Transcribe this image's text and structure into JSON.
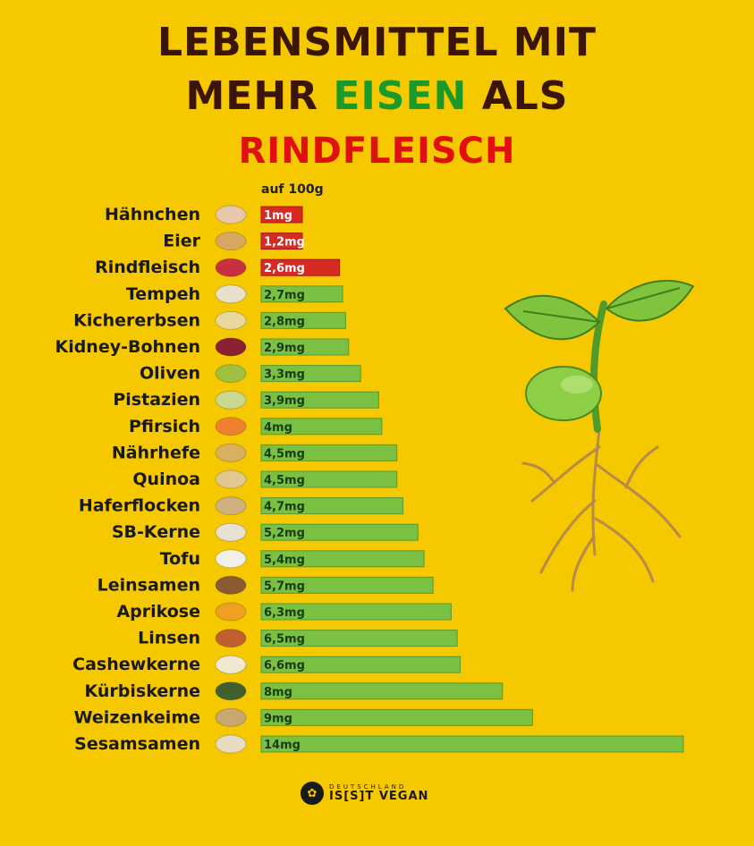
{
  "header": {
    "line1": "LEBENSMITTEL MIT",
    "line2_prefix": "MEHR ",
    "line2_highlight": "EISEN",
    "line2_suffix": " ALS",
    "line3": "RINDFLEISCH"
  },
  "unit_note": "auf 100g",
  "logo": {
    "small": "DEUTSCHLAND",
    "big": "IS[S]T VEGAN"
  },
  "colors": {
    "background": "#f5c800",
    "bar_green": "#7ac043",
    "bar_red": "#d62a22",
    "title_dark": "#3a1508",
    "title_green": "#1b9a2a",
    "title_red": "#e01010"
  },
  "chart_data": {
    "type": "bar",
    "orientation": "horizontal",
    "categories": [
      "Hähnchen",
      "Eier",
      "Rindfleisch",
      "Tempeh",
      "Kichererbsen",
      "Kidney-Bohnen",
      "Oliven",
      "Pistazien",
      "Pfirsich",
      "Nährhefe",
      "Quinoa",
      "Haferflocken",
      "SB-Kerne",
      "Tofu",
      "Leinsamen",
      "Aprikose",
      "Linsen",
      "Cashewkerne",
      "Kürbiskerne",
      "Weizenkeime",
      "Sesamsamen"
    ],
    "values": [
      1,
      1.2,
      2.6,
      2.7,
      2.8,
      2.9,
      3.3,
      3.9,
      4,
      4.5,
      4.5,
      4.7,
      5.2,
      5.4,
      5.7,
      6.3,
      6.5,
      6.6,
      8,
      9,
      14
    ],
    "value_labels": [
      "1mg",
      "1,2mg",
      "2,6mg",
      "2,7mg",
      "2,8mg",
      "2,9mg",
      "3,3mg",
      "3,9mg",
      "4mg",
      "4,5mg",
      "4,5mg",
      "4,7mg",
      "5,2mg",
      "5,4mg",
      "5,7mg",
      "6,3mg",
      "6,5mg",
      "6,6mg",
      "8mg",
      "9mg",
      "14mg"
    ],
    "highlight_red": [
      0,
      1,
      2
    ],
    "xlim": [
      0,
      14
    ],
    "grid": false,
    "legend": "none"
  }
}
